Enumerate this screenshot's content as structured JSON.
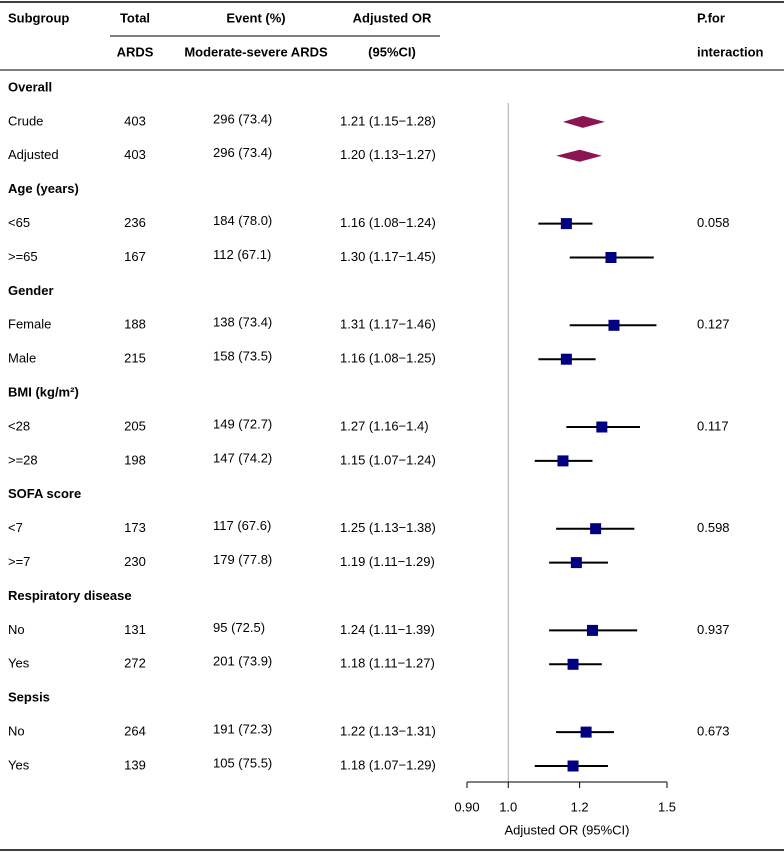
{
  "chart_data": {
    "type": "forest",
    "header_row1": [
      "Subgroup",
      "Total",
      "Event (%)",
      "Adjusted OR",
      "P.for"
    ],
    "header_row2": [
      "ARDS",
      "Moderate-severe ARDS",
      "(95%CI)",
      "interaction"
    ],
    "x_label": "Adjusted OR (95%CI)",
    "log_scale": true,
    "xlim": [
      0.9,
      1.5
    ],
    "xticks": [
      {
        "value": 0.9,
        "label": "0.90"
      },
      {
        "value": 1.0,
        "label": "1.0"
      },
      1.2,
      1.5
    ],
    "reference_line": 1.0,
    "diamond_color": "#8b1552",
    "square_color": "#000080",
    "groups": [
      {
        "name": "Overall",
        "rows": [
          {
            "label": "Crude",
            "total": 403,
            "event": "296 (73.4)",
            "or": 1.21,
            "lo": 1.15,
            "hi": 1.28,
            "ci_label": "1.21 (1.15−1.28)",
            "shape": "diamond"
          },
          {
            "label": "Adjusted",
            "total": 403,
            "event": "296 (73.4)",
            "or": 1.2,
            "lo": 1.13,
            "hi": 1.27,
            "ci_label": "1.20 (1.13−1.27)",
            "shape": "diamond"
          }
        ]
      },
      {
        "name": "Age (years)",
        "p_interaction": 0.058,
        "rows": [
          {
            "label": "<65",
            "total": 236,
            "event": "184 (78.0)",
            "or": 1.16,
            "lo": 1.08,
            "hi": 1.24,
            "ci_label": "1.16 (1.08−1.24)",
            "shape": "square"
          },
          {
            "label": ">=65",
            "total": 167,
            "event": "112 (67.1)",
            "or": 1.3,
            "lo": 1.17,
            "hi": 1.45,
            "ci_label": "1.30 (1.17−1.45)",
            "shape": "square"
          }
        ]
      },
      {
        "name": "Gender",
        "p_interaction": 0.127,
        "rows": [
          {
            "label": "Female",
            "total": 188,
            "event": "138 (73.4)",
            "or": 1.31,
            "lo": 1.17,
            "hi": 1.46,
            "ci_label": "1.31 (1.17−1.46)",
            "shape": "square"
          },
          {
            "label": "Male",
            "total": 215,
            "event": "158 (73.5)",
            "or": 1.16,
            "lo": 1.08,
            "hi": 1.25,
            "ci_label": "1.16 (1.08−1.25)",
            "shape": "square"
          }
        ]
      },
      {
        "name": "BMI (kg/m²)",
        "p_interaction": 0.117,
        "rows": [
          {
            "label": "<28",
            "total": 205,
            "event": "149 (72.7)",
            "or": 1.27,
            "lo": 1.16,
            "hi": 1.4,
            "ci_label": "1.27 (1.16−1.4)",
            "shape": "square"
          },
          {
            "label": ">=28",
            "total": 198,
            "event": "147 (74.2)",
            "or": 1.15,
            "lo": 1.07,
            "hi": 1.24,
            "ci_label": "1.15 (1.07−1.24)",
            "shape": "square"
          }
        ]
      },
      {
        "name": "SOFA score",
        "p_interaction": 0.598,
        "rows": [
          {
            "label": "<7",
            "total": 173,
            "event": "117 (67.6)",
            "or": 1.25,
            "lo": 1.13,
            "hi": 1.38,
            "ci_label": "1.25 (1.13−1.38)",
            "shape": "square"
          },
          {
            "label": ">=7",
            "total": 230,
            "event": "179 (77.8)",
            "or": 1.19,
            "lo": 1.11,
            "hi": 1.29,
            "ci_label": "1.19 (1.11−1.29)",
            "shape": "square"
          }
        ]
      },
      {
        "name": "Respiratory disease",
        "p_interaction": 0.937,
        "rows": [
          {
            "label": "No",
            "total": 131,
            "event": "95 (72.5)",
            "or": 1.24,
            "lo": 1.11,
            "hi": 1.39,
            "ci_label": "1.24 (1.11−1.39)",
            "shape": "square"
          },
          {
            "label": "Yes",
            "total": 272,
            "event": "201 (73.9)",
            "or": 1.18,
            "lo": 1.11,
            "hi": 1.27,
            "ci_label": "1.18 (1.11−1.27)",
            "shape": "square"
          }
        ]
      },
      {
        "name": "Sepsis",
        "p_interaction": 0.673,
        "rows": [
          {
            "label": "No",
            "total": 264,
            "event": "191 (72.3)",
            "or": 1.22,
            "lo": 1.13,
            "hi": 1.31,
            "ci_label": "1.22 (1.13−1.31)",
            "shape": "square"
          },
          {
            "label": "Yes",
            "total": 139,
            "event": "105 (75.5)",
            "or": 1.18,
            "lo": 1.07,
            "hi": 1.29,
            "ci_label": "1.18 (1.07−1.29)",
            "shape": "square"
          }
        ]
      }
    ]
  }
}
